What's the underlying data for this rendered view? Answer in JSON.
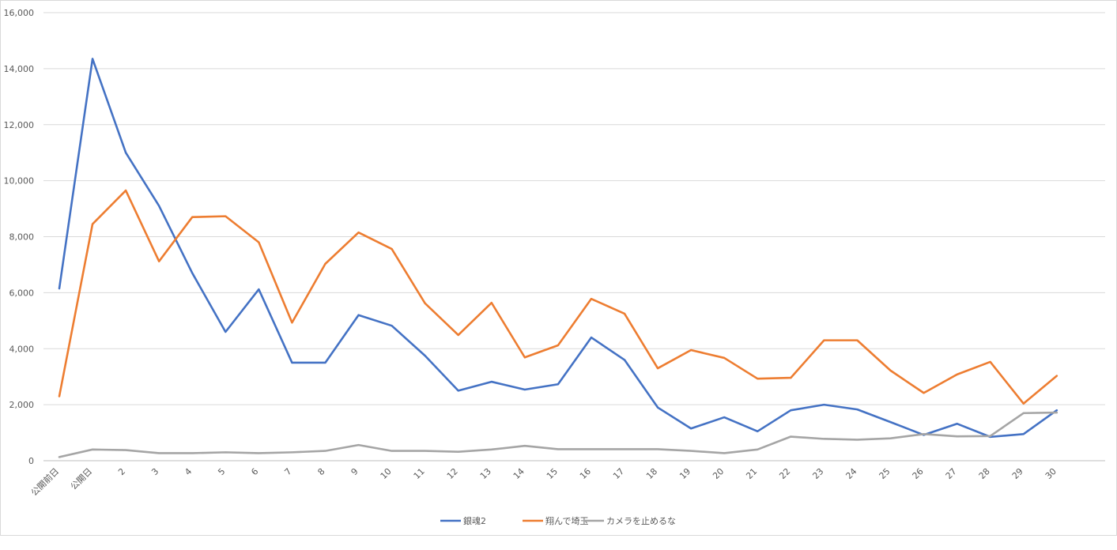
{
  "chart_data": {
    "type": "line",
    "title": "",
    "xlabel": "",
    "ylabel": "",
    "ylim": [
      0,
      16000
    ],
    "yticks": [
      0,
      2000,
      4000,
      6000,
      8000,
      10000,
      12000,
      14000,
      16000
    ],
    "ytick_labels": [
      "0",
      "2,000",
      "4,000",
      "6,000",
      "8,000",
      "10,000",
      "12,000",
      "14,000",
      "16,000"
    ],
    "grid": "horizontal",
    "legend": "bottom",
    "categories": [
      "公開前日",
      "公開日",
      "2",
      "3",
      "4",
      "5",
      "6",
      "7",
      "8",
      "9",
      "10",
      "11",
      "12",
      "13",
      "14",
      "15",
      "16",
      "17",
      "18",
      "19",
      "20",
      "21",
      "22",
      "23",
      "24",
      "25",
      "26",
      "27",
      "28",
      "29",
      "30"
    ],
    "series": [
      {
        "name": "銀魂2",
        "color": "#4472c4",
        "values": [
          6150,
          14350,
          11000,
          9100,
          6700,
          4600,
          6120,
          3500,
          3500,
          5200,
          4820,
          3750,
          2500,
          2820,
          2540,
          2730,
          4400,
          3600,
          1900,
          1150,
          1550,
          1050,
          1800,
          2000,
          1830,
          1380,
          920,
          1320,
          850,
          950,
          1800
        ]
      },
      {
        "name": "翔んで埼玉",
        "color": "#ed7d31",
        "values": [
          2300,
          8450,
          9650,
          7120,
          8700,
          8730,
          7800,
          4930,
          7030,
          8150,
          7560,
          5620,
          4490,
          5640,
          3690,
          4120,
          5780,
          5250,
          3300,
          3950,
          3670,
          2930,
          2960,
          4300,
          4300,
          3220,
          2420,
          3080,
          3530,
          2040,
          3030
        ]
      },
      {
        "name": "カメラを止めるな",
        "color": "#a5a5a5",
        "values": [
          130,
          400,
          380,
          270,
          270,
          300,
          270,
          300,
          350,
          560,
          350,
          350,
          320,
          400,
          530,
          410,
          410,
          410,
          410,
          350,
          270,
          400,
          860,
          780,
          750,
          800,
          950,
          870,
          880,
          1700,
          1720
        ]
      }
    ]
  }
}
